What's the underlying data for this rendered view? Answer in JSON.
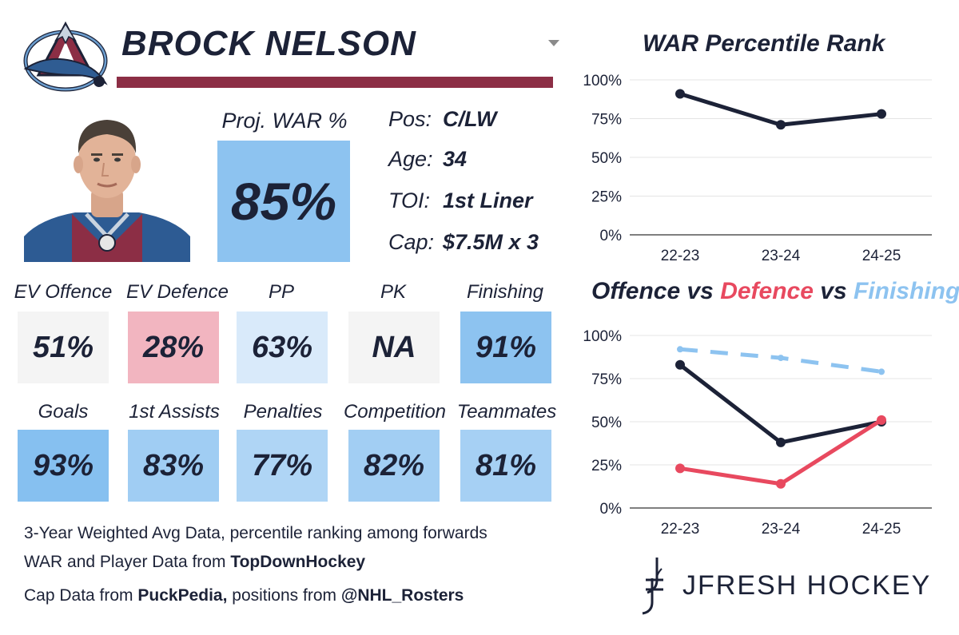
{
  "player": {
    "name": "BROCK NELSON",
    "proj_war_label": "Proj. WAR %",
    "proj_war_value": "85%"
  },
  "bio": [
    {
      "label": "Pos:",
      "value": "C/LW"
    },
    {
      "label": "Age:",
      "value": "34"
    },
    {
      "label": "TOI:",
      "value": "1st Liner"
    },
    {
      "label": "Cap:",
      "value": "$7.5M x 3"
    }
  ],
  "tiles_row1": [
    {
      "label": "EV Offence",
      "value": "51%",
      "color": "#f4f4f4"
    },
    {
      "label": "EV Defence",
      "value": "28%",
      "color": "#f2b5c0"
    },
    {
      "label": "PP",
      "value": "63%",
      "color": "#d9eafa"
    },
    {
      "label": "PK",
      "value": "NA",
      "color": "#f4f4f4"
    },
    {
      "label": "Finishing",
      "value": "91%",
      "color": "#8dc3f0"
    }
  ],
  "tiles_row2": [
    {
      "label": "Goals",
      "value": "93%",
      "color": "#86c0f0"
    },
    {
      "label": "1st Assists",
      "value": "83%",
      "color": "#a0cdf3"
    },
    {
      "label": "Penalties",
      "value": "77%",
      "color": "#afd5f5"
    },
    {
      "label": "Competition",
      "value": "82%",
      "color": "#a2cef3"
    },
    {
      "label": "Teammates",
      "value": "81%",
      "color": "#a6d0f4"
    }
  ],
  "footnotes": {
    "line1": "3-Year Weighted Avg Data, percentile ranking among forwards",
    "line2_prefix": "WAR and Player Data from ",
    "line2_bold": "TopDownHockey",
    "line3_prefix": "Cap Data from ",
    "line3_bold": "PuckPedia,",
    "line3_mid": " positions from ",
    "line3_bold2": "@NHL_Rosters"
  },
  "brand": {
    "name": "JFRESH HOCKEY"
  },
  "colors": {
    "navy": "#1c2237",
    "red": "#e8495f",
    "lightblue": "#8dc3f0",
    "maroon": "#8c2e45"
  },
  "chart_data": [
    {
      "type": "line",
      "title": "WAR Percentile Rank",
      "categories": [
        "22-23",
        "23-24",
        "24-25"
      ],
      "series": [
        {
          "values": [
            91,
            71,
            78
          ],
          "color": "#1c2237",
          "style": "solid"
        }
      ],
      "yticks": [
        "100%",
        "75%",
        "50%",
        "25%",
        "0%"
      ],
      "ylim": [
        0,
        100
      ],
      "grid": true
    },
    {
      "type": "line",
      "title_parts": [
        {
          "text": "Offence",
          "color": "#1c2237"
        },
        {
          "text": " vs ",
          "color": "#1c2237"
        },
        {
          "text": "Defence",
          "color": "#e8495f"
        },
        {
          "text": " vs ",
          "color": "#1c2237"
        },
        {
          "text": "Finishing",
          "color": "#8dc3f0"
        }
      ],
      "categories": [
        "22-23",
        "23-24",
        "24-25"
      ],
      "series": [
        {
          "values": [
            92,
            87,
            79
          ],
          "color": "#8dc3f0",
          "style": "dashed"
        },
        {
          "values": [
            83,
            38,
            50
          ],
          "color": "#1c2237",
          "style": "solid"
        },
        {
          "values": [
            23,
            14,
            51
          ],
          "color": "#e8495f",
          "style": "solid"
        }
      ],
      "yticks": [
        "100%",
        "75%",
        "50%",
        "25%",
        "0%"
      ],
      "ylim": [
        0,
        100
      ],
      "grid": true
    }
  ]
}
